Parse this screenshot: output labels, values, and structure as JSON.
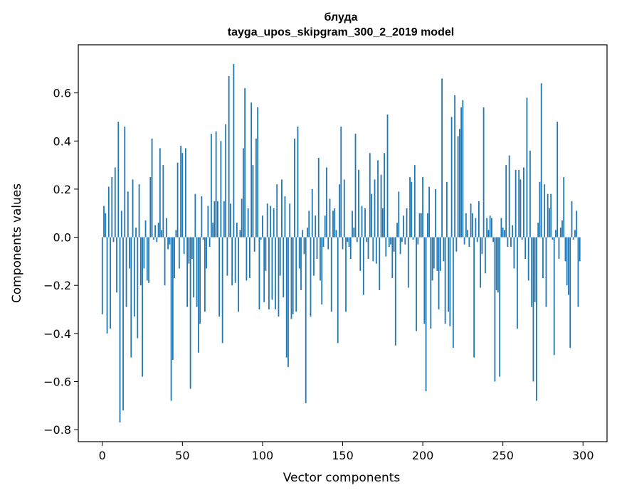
{
  "chart_data": {
    "type": "bar",
    "title": "блуда",
    "subtitle": "tayga_upos_skipgram_300_2_2019 model",
    "xlabel": "Vector components",
    "ylabel": "Components values",
    "xlim": [
      -15,
      315
    ],
    "ylim": [
      -0.85,
      0.8
    ],
    "xticks": [
      0,
      50,
      100,
      150,
      200,
      250,
      300
    ],
    "xtick_labels": [
      "0",
      "50",
      "100",
      "150",
      "200",
      "250",
      "300"
    ],
    "yticks": [
      -0.8,
      -0.6,
      -0.4,
      -0.2,
      0.0,
      0.2,
      0.4,
      0.6
    ],
    "ytick_labels": [
      "−0.8",
      "−0.6",
      "−0.4",
      "−0.2",
      "0.0",
      "0.2",
      "0.4",
      "0.6"
    ],
    "bar_color": "#1f77b4",
    "values": [
      -0.32,
      0.13,
      0.1,
      -0.4,
      0.21,
      -0.38,
      0.25,
      -0.02,
      0.29,
      -0.23,
      0.48,
      -0.77,
      0.11,
      -0.72,
      0.46,
      -0.29,
      0.19,
      -0.13,
      -0.5,
      0.24,
      -0.33,
      0.04,
      -0.42,
      0.22,
      -0.2,
      -0.58,
      -0.13,
      0.07,
      -0.18,
      -0.19,
      0.25,
      0.41,
      -0.01,
      0.05,
      -0.02,
      0.06,
      0.37,
      0.03,
      0.3,
      -0.2,
      0.08,
      -0.05,
      -0.03,
      -0.68,
      -0.51,
      -0.17,
      0.03,
      0.31,
      -0.13,
      0.38,
      0.35,
      -0.07,
      0.37,
      -0.29,
      -0.11,
      -0.63,
      -0.09,
      -0.25,
      0.18,
      -0.29,
      -0.48,
      -0.36,
      0.17,
      -0.01,
      -0.31,
      -0.13,
      0.13,
      -0.04,
      0.43,
      0.06,
      0.15,
      0.44,
      0.15,
      -0.33,
      0.4,
      -0.44,
      0.15,
      0.47,
      -0.16,
      0.67,
      0.14,
      -0.2,
      0.72,
      -0.19,
      0.06,
      -0.31,
      0.03,
      0.16,
      0.37,
      0.62,
      -0.18,
      0.12,
      -0.17,
      0.56,
      0.3,
      -0.06,
      0.41,
      0.54,
      -0.3,
      -0.01,
      0.09,
      -0.27,
      -0.14,
      0.14,
      -0.3,
      0.13,
      -0.26,
      0.12,
      -0.3,
      0.22,
      -0.33,
      -0.16,
      0.24,
      -0.25,
      0.17,
      -0.5,
      -0.54,
      0.14,
      -0.34,
      -0.32,
      0.41,
      -0.31,
      0.46,
      -0.13,
      -0.22,
      0.03,
      -0.07,
      -0.69,
      0.04,
      0.11,
      -0.33,
      0.2,
      -0.16,
      0.09,
      -0.09,
      0.33,
      -0.18,
      -0.28,
      -0.04,
      0.09,
      0.29,
      -0.05,
      0.16,
      -0.31,
      0.11,
      0.12,
      0.03,
      -0.44,
      0.22,
      0.46,
      -0.05,
      0.24,
      -0.31,
      -0.02,
      -0.04,
      -0.09,
      0.11,
      0.04,
      0.43,
      -0.02,
      0.28,
      -0.14,
      0.13,
      -0.24,
      0.12,
      -0.02,
      -0.09,
      0.35,
      0.18,
      -0.1,
      0.24,
      -0.11,
      0.32,
      -0.22,
      0.26,
      0.12,
      0.35,
      -0.08,
      0.51,
      -0.04,
      -0.03,
      -0.17,
      -0.06,
      -0.45,
      0.06,
      0.19,
      -0.07,
      -0.02,
      0.09,
      -0.03,
      0.12,
      -0.21,
      0.25,
      0.23,
      -0.01,
      0.3,
      -0.39,
      -0.03,
      0.1,
      0.1,
      0.25,
      -0.36,
      -0.64,
      0.1,
      0.21,
      -0.38,
      -0.18,
      -0.13,
      0.2,
      -0.14,
      -0.3,
      -0.14,
      0.66,
      -0.1,
      -0.36,
      0.23,
      -0.31,
      -0.37,
      0.5,
      -0.46,
      0.59,
      -0.06,
      0.42,
      0.45,
      0.54,
      0.57,
      -0.03,
      0.1,
      0.03,
      -0.04,
      0.14,
      0.1,
      -0.5,
      0.08,
      -0.02,
      0.15,
      -0.21,
      -0.07,
      0.54,
      -0.15,
      0.08,
      0.03,
      0.09,
      0.08,
      -0.02,
      -0.6,
      -0.22,
      -0.23,
      -0.58,
      0.08,
      0.04,
      0.03,
      0.3,
      -0.04,
      0.34,
      -0.04,
      0.05,
      -0.13,
      0.28,
      -0.38,
      0.28,
      0.24,
      -0.01,
      0.29,
      -0.09,
      0.58,
      -0.18,
      0.36,
      -0.29,
      -0.6,
      -0.27,
      -0.68,
      0.06,
      0.23,
      0.64,
      -0.17,
      0.22,
      -0.29,
      0.18,
      0.12,
      0.18,
      -0.01,
      -0.49,
      0.03,
      0.48,
      -0.09,
      0.04,
      0.07,
      0.25,
      -0.1,
      -0.2,
      -0.24,
      -0.46,
      0.15,
      -0.01,
      0.03,
      0.11,
      -0.29,
      -0.1
    ]
  }
}
